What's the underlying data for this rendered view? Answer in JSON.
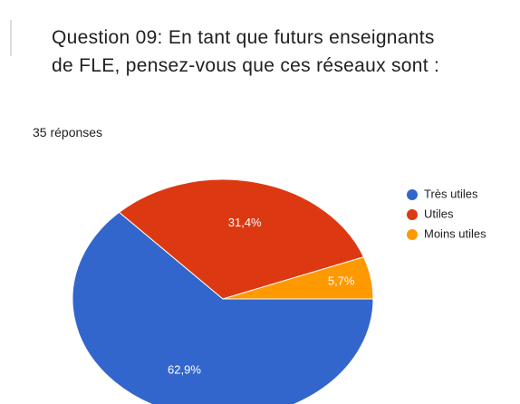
{
  "chart_data": {
    "type": "pie",
    "title": "Question 09: En tant que futurs enseignants de FLE, pensez-vous que ces réseaux sont :",
    "subtitle": "35 réponses",
    "categories": [
      "Très utiles",
      "Utiles",
      "Moins utiles"
    ],
    "values": [
      62.9,
      31.4,
      5.7
    ],
    "value_labels": [
      "62,9%",
      "31,4%",
      "5,7%"
    ],
    "colors": [
      "#3366cc",
      "#dc3912",
      "#ff9900"
    ],
    "legend": "right"
  }
}
